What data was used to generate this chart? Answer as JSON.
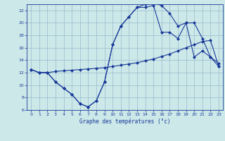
{
  "title": "Graphe des températures (°c)",
  "bg_color": "#cce8e8",
  "line_color": "#1a3a9a",
  "grid_color": "#99bbcc",
  "xlim": [
    -0.5,
    23.5
  ],
  "ylim": [
    6,
    23
  ],
  "xticks": [
    0,
    1,
    2,
    3,
    4,
    5,
    6,
    7,
    8,
    9,
    10,
    11,
    12,
    13,
    14,
    15,
    16,
    17,
    18,
    19,
    20,
    21,
    22,
    23
  ],
  "yticks": [
    6,
    8,
    10,
    12,
    14,
    16,
    18,
    20,
    22
  ],
  "series1_x": [
    0,
    1,
    2,
    3,
    4,
    5,
    6,
    7,
    8,
    9,
    10,
    11,
    12,
    13,
    14,
    15,
    16,
    17,
    18,
    19,
    20,
    21,
    22,
    23
  ],
  "series1_y": [
    12.5,
    12.0,
    12.0,
    12.2,
    12.3,
    12.4,
    12.5,
    12.6,
    12.7,
    12.8,
    13.0,
    13.2,
    13.4,
    13.6,
    13.9,
    14.2,
    14.6,
    15.0,
    15.5,
    16.0,
    16.5,
    17.0,
    17.2,
    13.0
  ],
  "series2_x": [
    0,
    1,
    2,
    3,
    4,
    5,
    6,
    7,
    8,
    9,
    10,
    11,
    12,
    13,
    14,
    15,
    16,
    17,
    18,
    19,
    20,
    21,
    22,
    23
  ],
  "series2_y": [
    12.5,
    12.0,
    12.0,
    10.5,
    9.5,
    8.5,
    7.0,
    6.5,
    7.5,
    10.5,
    16.5,
    19.5,
    21.0,
    22.5,
    22.5,
    22.8,
    18.5,
    18.5,
    17.5,
    20.0,
    14.5,
    15.5,
    14.5,
    13.0
  ],
  "series3_x": [
    0,
    1,
    2,
    3,
    4,
    5,
    6,
    7,
    8,
    9,
    10,
    11,
    12,
    13,
    14,
    15,
    16,
    17,
    18,
    19,
    20,
    21,
    22,
    23
  ],
  "series3_y": [
    12.5,
    12.0,
    12.0,
    10.5,
    9.5,
    8.5,
    7.0,
    6.5,
    7.5,
    10.5,
    16.5,
    19.5,
    21.0,
    22.5,
    23.0,
    23.2,
    22.8,
    21.5,
    19.5,
    20.0,
    20.0,
    17.5,
    14.5,
    13.5
  ]
}
